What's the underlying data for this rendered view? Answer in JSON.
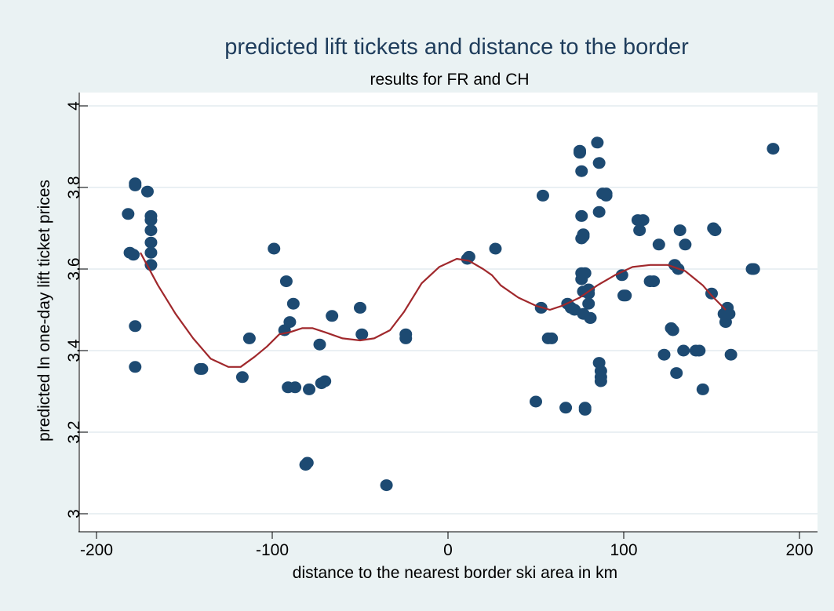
{
  "chart_data": {
    "type": "scatter",
    "title": "predicted lift tickets and distance to the border",
    "subtitle": "results for FR and CH",
    "xlabel": "distance to the nearest border ski area in km",
    "ylabel": "predicted ln one-day lift ticket prices",
    "xlim": [
      -210,
      210
    ],
    "ylim": [
      3,
      4
    ],
    "xticks": [
      -200,
      -100,
      0,
      100,
      200
    ],
    "xtick_labels": [
      "-200",
      "-100",
      "0",
      "100",
      "200"
    ],
    "yticks": [
      3,
      3.2,
      3.4,
      3.6,
      3.8,
      4
    ],
    "ytick_labels": [
      "3",
      "3.2",
      "3.4",
      "3.6",
      "3.8",
      "4"
    ],
    "grid": true,
    "legend": "none",
    "colors": {
      "background": "#eaf2f3",
      "plot_area": "#ffffff",
      "points": "#1d4a72",
      "fit_line": "#a0282c",
      "title": "#1f3d5c",
      "grid": "#e3ecef"
    },
    "series": [
      {
        "kind": "points",
        "x": [
          -182,
          -181,
          -178,
          -178,
          -179,
          -178,
          -178,
          -171,
          -169,
          -169,
          -169,
          -169,
          -169,
          -169,
          -141,
          -140,
          -117,
          -113,
          -99,
          -93,
          -92,
          -91,
          -90,
          -88,
          -87,
          -81,
          -80,
          -79,
          -73,
          -72,
          -70,
          -66,
          -50,
          -49,
          -35,
          -24,
          -24,
          11,
          12,
          27,
          50,
          53,
          54,
          57,
          59,
          67,
          68,
          70,
          72,
          75,
          75,
          76,
          76,
          76,
          76,
          76,
          77,
          77,
          77,
          77,
          78,
          78,
          78,
          80,
          80,
          80,
          81,
          81,
          85,
          86,
          86,
          86,
          87,
          87,
          87,
          88,
          90,
          90,
          99,
          100,
          101,
          108,
          109,
          111,
          115,
          117,
          120,
          123,
          127,
          128,
          129,
          130,
          131,
          132,
          134,
          135,
          141,
          143,
          145,
          150,
          151,
          152,
          157,
          158,
          159,
          160,
          161,
          173,
          174,
          185
        ],
        "y": [
          3.735,
          3.64,
          3.81,
          3.805,
          3.635,
          3.46,
          3.36,
          3.79,
          3.73,
          3.72,
          3.695,
          3.665,
          3.64,
          3.61,
          3.355,
          3.355,
          3.335,
          3.43,
          3.65,
          3.45,
          3.57,
          3.31,
          3.47,
          3.515,
          3.31,
          3.12,
          3.125,
          3.305,
          3.415,
          3.32,
          3.325,
          3.485,
          3.505,
          3.44,
          3.07,
          3.43,
          3.44,
          3.625,
          3.63,
          3.65,
          3.275,
          3.505,
          3.78,
          3.43,
          3.43,
          3.26,
          3.515,
          3.505,
          3.5,
          3.885,
          3.89,
          3.84,
          3.73,
          3.675,
          3.59,
          3.575,
          3.545,
          3.49,
          3.68,
          3.685,
          3.26,
          3.255,
          3.59,
          3.55,
          3.54,
          3.515,
          3.48,
          3.48,
          3.91,
          3.86,
          3.74,
          3.37,
          3.35,
          3.335,
          3.325,
          3.785,
          3.785,
          3.78,
          3.585,
          3.535,
          3.535,
          3.72,
          3.695,
          3.72,
          3.57,
          3.57,
          3.66,
          3.39,
          3.455,
          3.45,
          3.61,
          3.345,
          3.6,
          3.695,
          3.4,
          3.66,
          3.4,
          3.4,
          3.305,
          3.54,
          3.7,
          3.695,
          3.49,
          3.47,
          3.505,
          3.49,
          3.39,
          3.6,
          3.6,
          3.895
        ]
      },
      {
        "kind": "fit_line",
        "x": [
          -175,
          -165,
          -155,
          -145,
          -135,
          -125,
          -118,
          -110,
          -103,
          -96,
          -90,
          -83,
          -77,
          -70,
          -60,
          -50,
          -42,
          -33,
          -25,
          -15,
          -5,
          5,
          12,
          20,
          25,
          30,
          40,
          50,
          58,
          65,
          75,
          85,
          95,
          105,
          115,
          125,
          135,
          145,
          150,
          158
        ],
        "y": [
          3.64,
          3.56,
          3.49,
          3.43,
          3.38,
          3.36,
          3.36,
          3.385,
          3.41,
          3.44,
          3.445,
          3.455,
          3.455,
          3.445,
          3.43,
          3.425,
          3.43,
          3.45,
          3.495,
          3.565,
          3.605,
          3.625,
          3.62,
          3.6,
          3.585,
          3.56,
          3.53,
          3.51,
          3.5,
          3.51,
          3.53,
          3.56,
          3.585,
          3.605,
          3.61,
          3.61,
          3.595,
          3.56,
          3.535,
          3.5
        ]
      }
    ]
  }
}
